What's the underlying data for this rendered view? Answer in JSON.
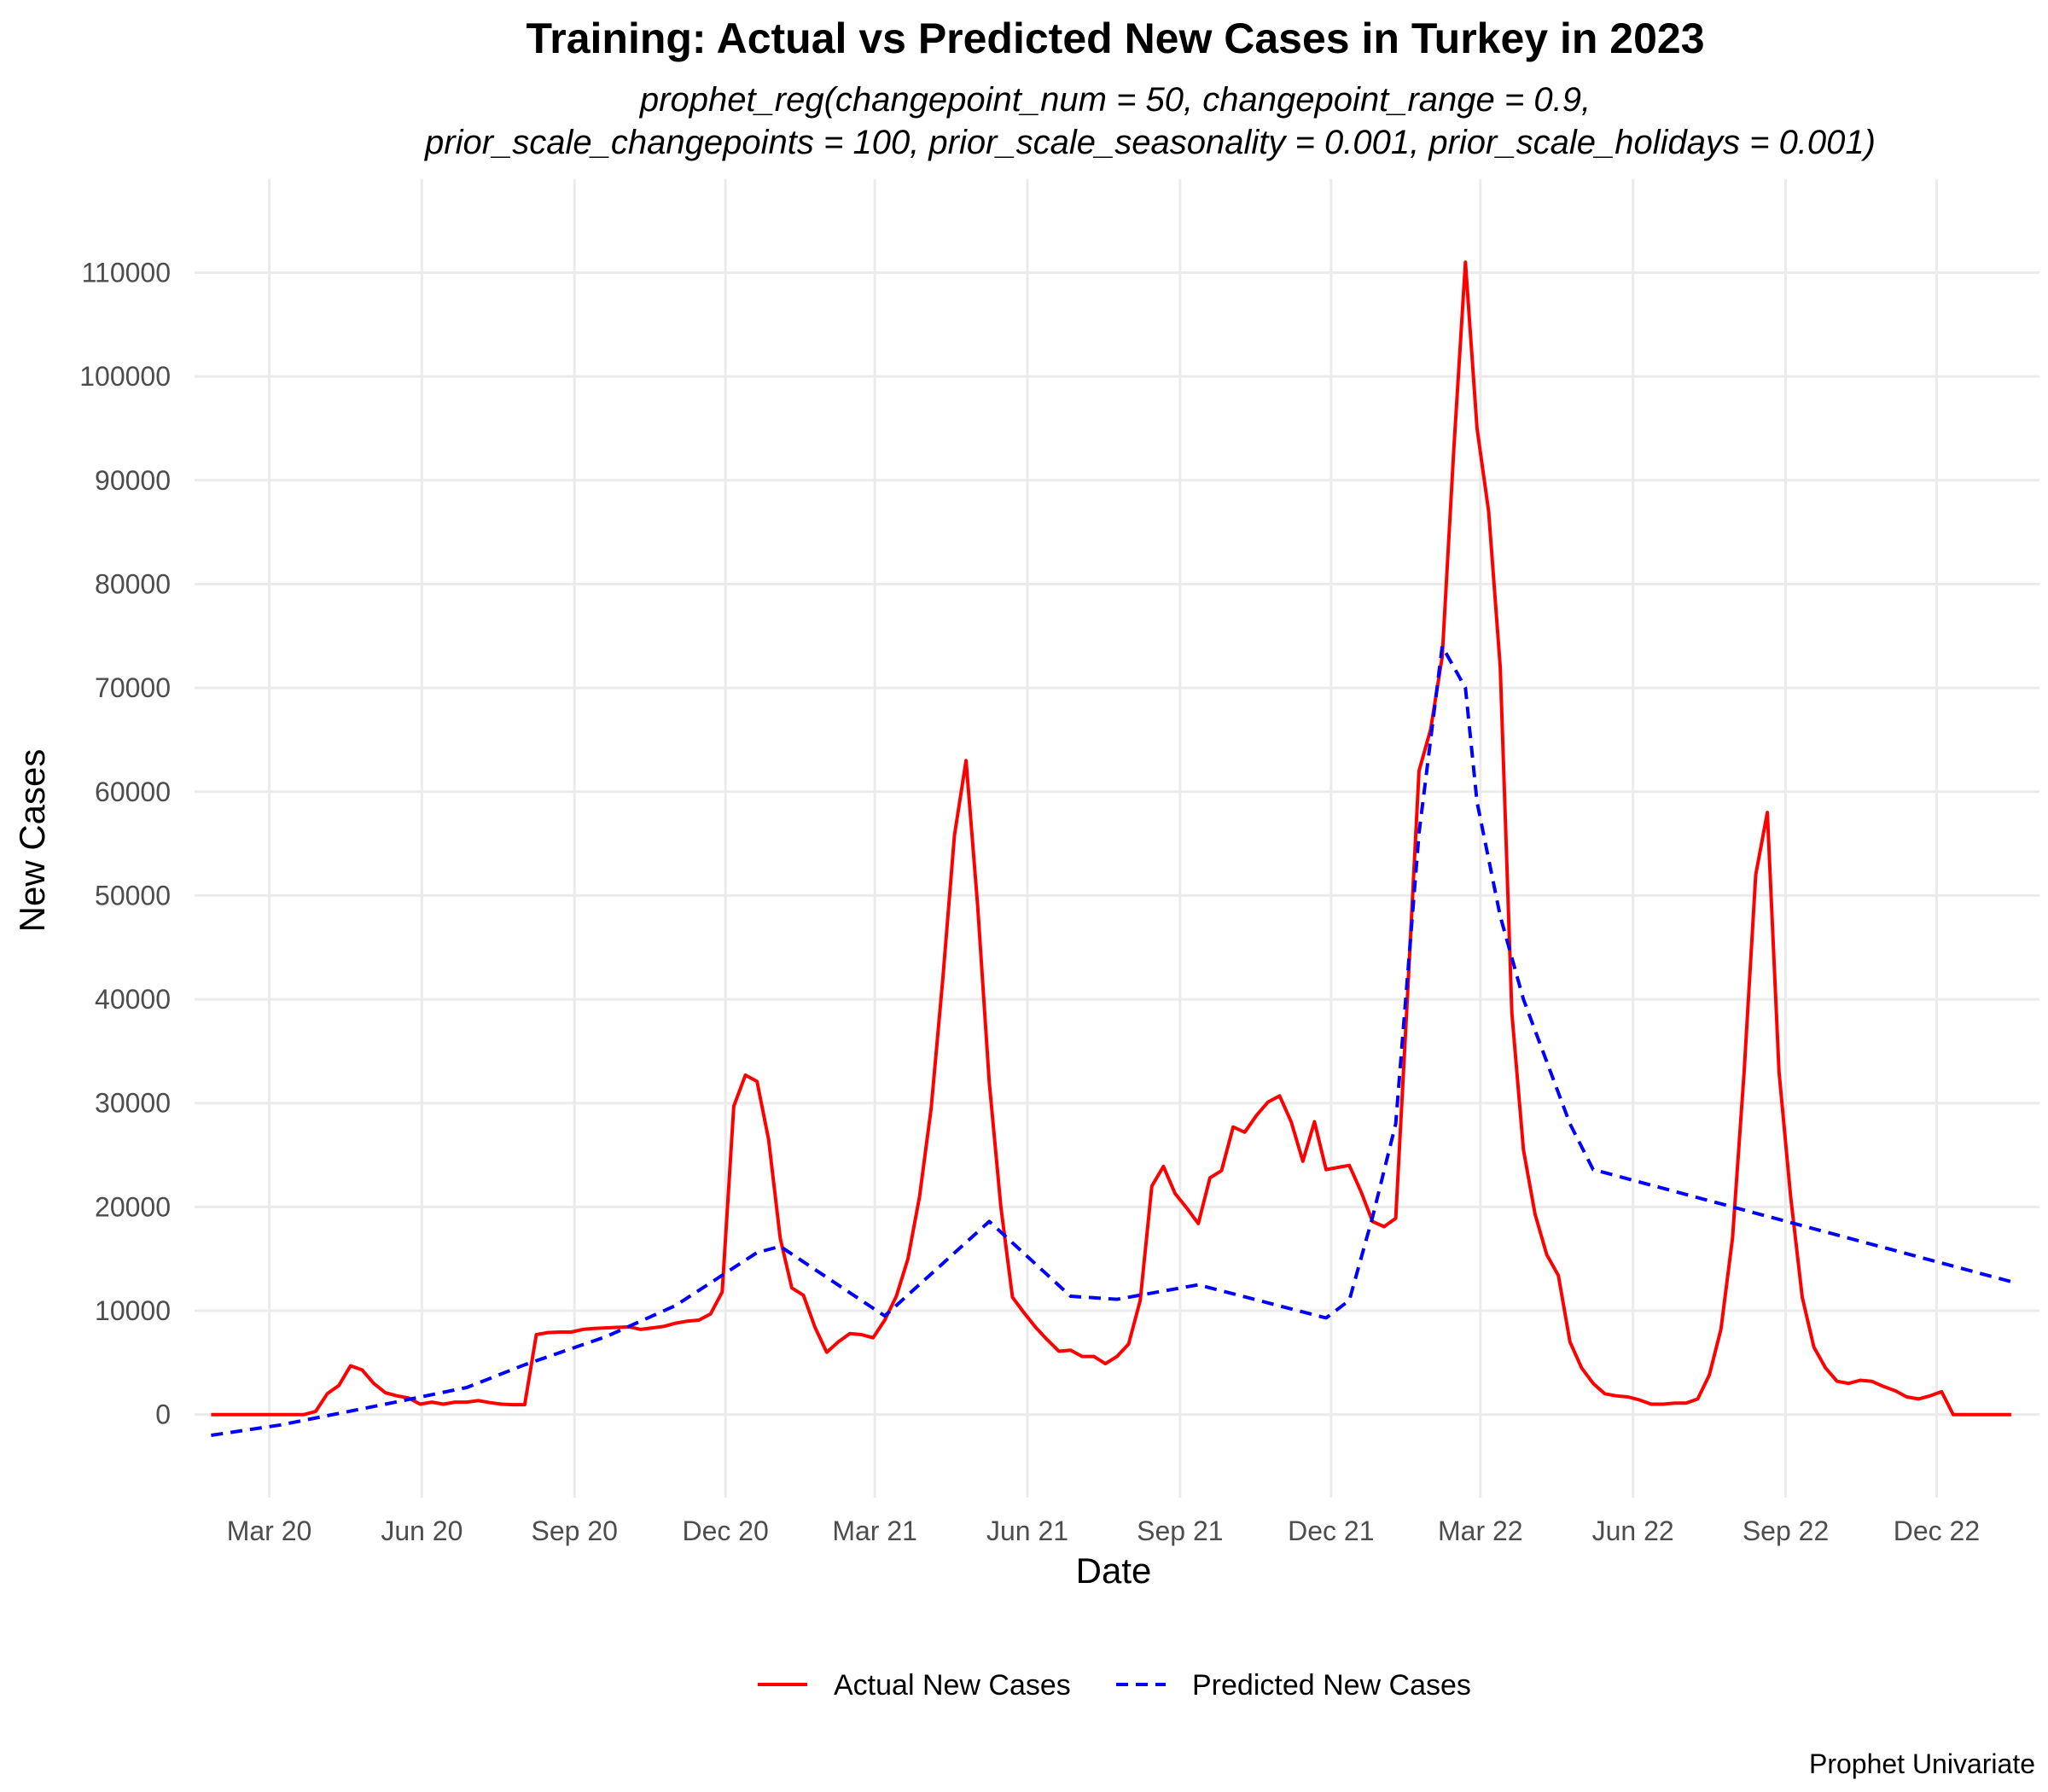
{
  "chart_data": {
    "type": "line",
    "title": "Training: Actual vs Predicted New Cases in Turkey in 2023",
    "subtitle_lines": [
      "prophet_reg(changepoint_num = 50, changepoint_range = 0.9,",
      "prior_scale_changepoints = 100, prior_scale_seasonality = 0.001, prior_scale_holidays = 0.001)"
    ],
    "xlabel": "Date",
    "ylabel": "New Cases",
    "caption": "Prophet Univariate",
    "x_ticks": [
      {
        "date": "2020-03-01",
        "label": "Mar 20"
      },
      {
        "date": "2020-06-01",
        "label": "Jun 20"
      },
      {
        "date": "2020-09-01",
        "label": "Sep 20"
      },
      {
        "date": "2020-12-01",
        "label": "Dec 20"
      },
      {
        "date": "2021-03-01",
        "label": "Mar 21"
      },
      {
        "date": "2021-06-01",
        "label": "Jun 21"
      },
      {
        "date": "2021-09-01",
        "label": "Sep 21"
      },
      {
        "date": "2021-12-01",
        "label": "Dec 21"
      },
      {
        "date": "2022-03-01",
        "label": "Mar 22"
      },
      {
        "date": "2022-06-01",
        "label": "Jun 22"
      },
      {
        "date": "2022-09-01",
        "label": "Sep 22"
      },
      {
        "date": "2022-12-01",
        "label": "Dec 22"
      }
    ],
    "y_ticks": [
      0,
      10000,
      20000,
      30000,
      40000,
      50000,
      60000,
      70000,
      80000,
      90000,
      100000,
      110000
    ],
    "xlim": [
      "2020-01-16",
      "2023-02-01"
    ],
    "ylim": [
      -8000,
      119000
    ],
    "grid": true,
    "legend_position": "bottom",
    "series": [
      {
        "name": "Actual New Cases",
        "color": "#ff0000",
        "style": "solid",
        "points": [
          [
            "2020-01-26",
            0
          ],
          [
            "2020-02-09",
            0
          ],
          [
            "2020-02-23",
            0
          ],
          [
            "2020-03-08",
            0
          ],
          [
            "2020-03-22",
            0
          ],
          [
            "2020-03-29",
            300
          ],
          [
            "2020-04-05",
            2000
          ],
          [
            "2020-04-12",
            2800
          ],
          [
            "2020-04-19",
            4700
          ],
          [
            "2020-04-26",
            4300
          ],
          [
            "2020-05-03",
            3000
          ],
          [
            "2020-05-10",
            2100
          ],
          [
            "2020-05-17",
            1800
          ],
          [
            "2020-05-24",
            1600
          ],
          [
            "2020-05-31",
            1000
          ],
          [
            "2020-06-07",
            1200
          ],
          [
            "2020-06-14",
            1000
          ],
          [
            "2020-06-21",
            1200
          ],
          [
            "2020-06-28",
            1200
          ],
          [
            "2020-07-05",
            1350
          ],
          [
            "2020-07-12",
            1150
          ],
          [
            "2020-07-19",
            1000
          ],
          [
            "2020-07-26",
            950
          ],
          [
            "2020-08-02",
            950
          ],
          [
            "2020-08-09",
            7700
          ],
          [
            "2020-08-16",
            7900
          ],
          [
            "2020-08-23",
            7950
          ],
          [
            "2020-08-30",
            7950
          ],
          [
            "2020-09-06",
            8200
          ],
          [
            "2020-09-13",
            8300
          ],
          [
            "2020-09-20",
            8350
          ],
          [
            "2020-09-27",
            8400
          ],
          [
            "2020-10-04",
            8450
          ],
          [
            "2020-10-11",
            8200
          ],
          [
            "2020-10-18",
            8350
          ],
          [
            "2020-10-25",
            8500
          ],
          [
            "2020-11-01",
            8800
          ],
          [
            "2020-11-08",
            9000
          ],
          [
            "2020-11-15",
            9100
          ],
          [
            "2020-11-22",
            9700
          ],
          [
            "2020-11-29",
            11800
          ],
          [
            "2020-12-06",
            29700
          ],
          [
            "2020-12-13",
            32700
          ],
          [
            "2020-12-20",
            32100
          ],
          [
            "2020-12-27",
            26500
          ],
          [
            "2021-01-03",
            17000
          ],
          [
            "2021-01-10",
            12200
          ],
          [
            "2021-01-17",
            11500
          ],
          [
            "2021-01-24",
            8400
          ],
          [
            "2021-01-31",
            6000
          ],
          [
            "2021-02-07",
            7000
          ],
          [
            "2021-02-14",
            7800
          ],
          [
            "2021-02-21",
            7700
          ],
          [
            "2021-02-28",
            7400
          ],
          [
            "2021-03-07",
            9100
          ],
          [
            "2021-03-14",
            11400
          ],
          [
            "2021-03-21",
            15000
          ],
          [
            "2021-03-28",
            21000
          ],
          [
            "2021-04-04",
            29500
          ],
          [
            "2021-04-11",
            42000
          ],
          [
            "2021-04-18",
            55800
          ],
          [
            "2021-04-25",
            63000
          ],
          [
            "2021-05-02",
            49000
          ],
          [
            "2021-05-09",
            32000
          ],
          [
            "2021-05-16",
            20000
          ],
          [
            "2021-05-23",
            11300
          ],
          [
            "2021-05-30",
            9800
          ],
          [
            "2021-06-06",
            8400
          ],
          [
            "2021-06-13",
            7200
          ],
          [
            "2021-06-20",
            6100
          ],
          [
            "2021-06-27",
            6200
          ],
          [
            "2021-07-04",
            5600
          ],
          [
            "2021-07-11",
            5600
          ],
          [
            "2021-07-18",
            4900
          ],
          [
            "2021-07-25",
            5600
          ],
          [
            "2021-08-01",
            6800
          ],
          [
            "2021-08-08",
            11000
          ],
          [
            "2021-08-15",
            22000
          ],
          [
            "2021-08-22",
            23900
          ],
          [
            "2021-08-29",
            21300
          ],
          [
            "2021-09-05",
            19900
          ],
          [
            "2021-09-12",
            18400
          ],
          [
            "2021-09-19",
            22800
          ],
          [
            "2021-09-26",
            23500
          ],
          [
            "2021-10-03",
            27700
          ],
          [
            "2021-10-10",
            27200
          ],
          [
            "2021-10-17",
            28800
          ],
          [
            "2021-10-24",
            30100
          ],
          [
            "2021-10-31",
            30700
          ],
          [
            "2021-11-07",
            28200
          ],
          [
            "2021-11-14",
            24400
          ],
          [
            "2021-11-21",
            28200
          ],
          [
            "2021-11-28",
            23600
          ],
          [
            "2021-12-05",
            23800
          ],
          [
            "2021-12-12",
            24000
          ],
          [
            "2021-12-19",
            21500
          ],
          [
            "2021-12-26",
            18600
          ],
          [
            "2022-01-02",
            18100
          ],
          [
            "2022-01-09",
            18900
          ],
          [
            "2022-01-16",
            40000
          ],
          [
            "2022-01-23",
            62000
          ],
          [
            "2022-01-30",
            66000
          ],
          [
            "2022-02-06",
            73000
          ],
          [
            "2022-02-13",
            93000
          ],
          [
            "2022-02-20",
            111000
          ],
          [
            "2022-02-27",
            95000
          ],
          [
            "2022-03-06",
            87000
          ],
          [
            "2022-03-13",
            72000
          ],
          [
            "2022-03-20",
            38700
          ],
          [
            "2022-03-27",
            25500
          ],
          [
            "2022-04-03",
            19300
          ],
          [
            "2022-04-10",
            15400
          ],
          [
            "2022-04-17",
            13400
          ],
          [
            "2022-04-24",
            7000
          ],
          [
            "2022-05-01",
            4500
          ],
          [
            "2022-05-08",
            3000
          ],
          [
            "2022-05-15",
            2000
          ],
          [
            "2022-05-22",
            1800
          ],
          [
            "2022-05-29",
            1700
          ],
          [
            "2022-06-05",
            1400
          ],
          [
            "2022-06-12",
            1000
          ],
          [
            "2022-06-19",
            1000
          ],
          [
            "2022-06-26",
            1100
          ],
          [
            "2022-07-03",
            1100
          ],
          [
            "2022-07-10",
            1500
          ],
          [
            "2022-07-17",
            3800
          ],
          [
            "2022-07-24",
            8200
          ],
          [
            "2022-07-31",
            17000
          ],
          [
            "2022-08-07",
            33000
          ],
          [
            "2022-08-14",
            52000
          ],
          [
            "2022-08-21",
            58000
          ],
          [
            "2022-08-28",
            33000
          ],
          [
            "2022-09-04",
            21000
          ],
          [
            "2022-09-11",
            11300
          ],
          [
            "2022-09-18",
            6500
          ],
          [
            "2022-09-25",
            4500
          ],
          [
            "2022-10-02",
            3200
          ],
          [
            "2022-10-09",
            3000
          ],
          [
            "2022-10-16",
            3300
          ],
          [
            "2022-10-23",
            3200
          ],
          [
            "2022-10-30",
            2700
          ],
          [
            "2022-11-06",
            2300
          ],
          [
            "2022-11-13",
            1700
          ],
          [
            "2022-11-20",
            1500
          ],
          [
            "2022-11-27",
            1800
          ],
          [
            "2022-12-04",
            2200
          ],
          [
            "2022-12-11",
            0
          ],
          [
            "2022-12-18",
            0
          ],
          [
            "2022-12-25",
            0
          ],
          [
            "2023-01-01",
            0
          ],
          [
            "2023-01-08",
            0
          ],
          [
            "2023-01-15",
            0
          ]
        ]
      },
      {
        "name": "Predicted New Cases",
        "color": "#0000ff",
        "style": "dashed",
        "points": [
          [
            "2020-01-26",
            -2000
          ],
          [
            "2020-03-08",
            -1000
          ],
          [
            "2020-05-10",
            1000
          ],
          [
            "2020-06-28",
            2600
          ],
          [
            "2020-08-02",
            4800
          ],
          [
            "2020-09-20",
            7500
          ],
          [
            "2020-11-01",
            10500
          ],
          [
            "2020-12-20",
            15600
          ],
          [
            "2021-01-03",
            16200
          ],
          [
            "2021-03-07",
            9500
          ],
          [
            "2021-05-09",
            18600
          ],
          [
            "2021-06-27",
            11400
          ],
          [
            "2021-07-25",
            11100
          ],
          [
            "2021-09-12",
            12500
          ],
          [
            "2021-11-28",
            9300
          ],
          [
            "2021-12-12",
            11000
          ],
          [
            "2021-12-26",
            19000
          ],
          [
            "2022-01-09",
            28000
          ],
          [
            "2022-01-23",
            56000
          ],
          [
            "2022-02-06",
            74000
          ],
          [
            "2022-02-13",
            72000
          ],
          [
            "2022-02-20",
            70000
          ],
          [
            "2022-02-27",
            59000
          ],
          [
            "2022-03-13",
            48000
          ],
          [
            "2022-03-27",
            40000
          ],
          [
            "2022-04-24",
            28000
          ],
          [
            "2022-05-08",
            23600
          ],
          [
            "2023-01-15",
            12800
          ]
        ]
      }
    ]
  }
}
